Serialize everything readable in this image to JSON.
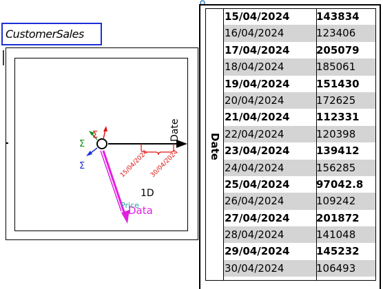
{
  "cube": {
    "name": "CustomerSales",
    "cardinality_label": "1D",
    "dimension_axis_label": "Date",
    "measure_label": "Data",
    "measure_name": "Price",
    "axis_ticks": [
      "15/04/2024",
      "30/04/2024"
    ],
    "sigma_symbol": "Σ",
    "colors": {
      "title_border": "#1a2fd6",
      "measure_arrow": "#e020e0",
      "measure_name": "#20a0a0",
      "tick_bracket": "#e01010",
      "sigma_red": "#e01010",
      "sigma_green": "#109010",
      "sigma_blue": "#1a2fd6"
    }
  },
  "table": {
    "dimension_header": "Date",
    "rows": [
      {
        "date": "15/04/2024",
        "value": "143834",
        "bold": true
      },
      {
        "date": "16/04/2024",
        "value": "123406",
        "bold": false
      },
      {
        "date": "17/04/2024",
        "value": "205079",
        "bold": true
      },
      {
        "date": "18/04/2024",
        "value": "185061",
        "bold": false
      },
      {
        "date": "19/04/2024",
        "value": "151430",
        "bold": true
      },
      {
        "date": "20/04/2024",
        "value": "172625",
        "bold": false
      },
      {
        "date": "21/04/2024",
        "value": "112331",
        "bold": true
      },
      {
        "date": "22/04/2024",
        "value": "120398",
        "bold": false
      },
      {
        "date": "23/04/2024",
        "value": "139412",
        "bold": true
      },
      {
        "date": "24/04/2024",
        "value": "156285",
        "bold": false
      },
      {
        "date": "25/04/2024",
        "value": "97042.8",
        "bold": true
      },
      {
        "date": "26/04/2024",
        "value": "109242",
        "bold": false
      },
      {
        "date": "27/04/2024",
        "value": "201872",
        "bold": true
      },
      {
        "date": "28/04/2024",
        "value": "141048",
        "bold": false
      },
      {
        "date": "29/04/2024",
        "value": "145232",
        "bold": true
      },
      {
        "date": "30/04/2024",
        "value": "106493",
        "bold": false
      }
    ]
  }
}
